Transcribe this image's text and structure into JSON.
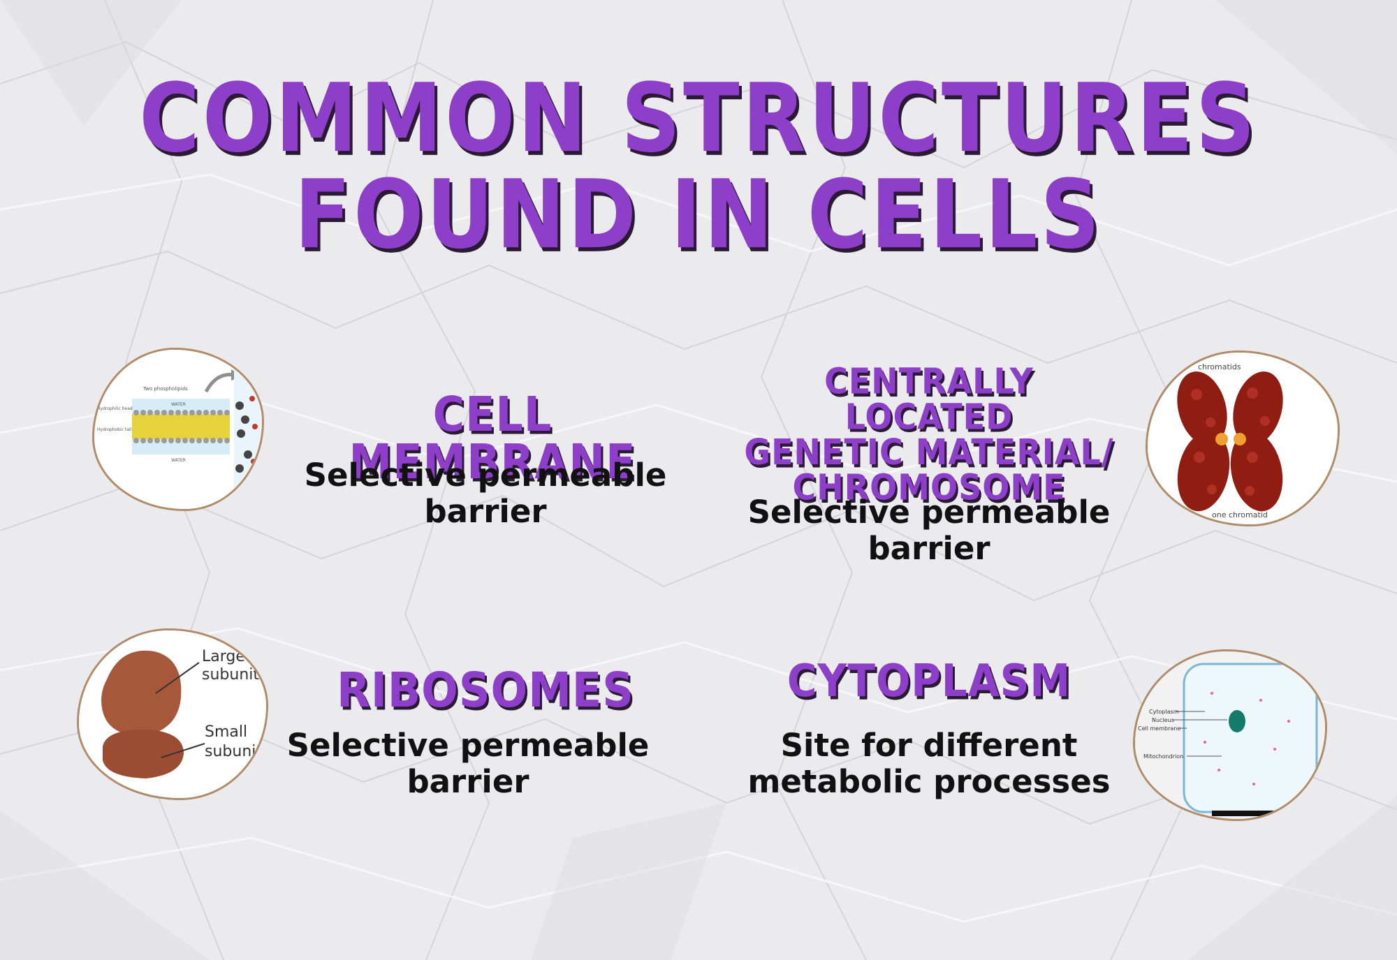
{
  "title": {
    "line1": "COMMON STRUCTURES",
    "line2": "FOUND IN CELLS"
  },
  "cards": {
    "membrane": {
      "heading": "CELL MEMBRANE",
      "desc_line1": "Selective permeable",
      "desc_line2": "barrier",
      "image_labels": {
        "two_phospholipids": "Two phospholipids",
        "water_top": "WATER",
        "water_bottom": "WATER",
        "hydrophilic": "Hydrophilic head",
        "hydrophobic": "Hydrophobic tail"
      }
    },
    "chromosome": {
      "heading_line1": "CENTRALLY LOCATED",
      "heading_line2": "GENETIC MATERIAL/",
      "heading_line3": "CHROMOSOME",
      "desc_line1": "Selective permeable",
      "desc_line2": "barrier",
      "image_labels": {
        "top": "chromatids",
        "bottom": "one chromatid"
      }
    },
    "ribosomes": {
      "heading": "RIBOSOMES",
      "desc_line1": "Selective permeable",
      "desc_line2": "barrier",
      "image_labels": {
        "large1": "Large",
        "large2": "subunit",
        "small1": "Small",
        "small2": "subunit"
      }
    },
    "cytoplasm": {
      "heading": "CYTOPLASM",
      "desc_line1": "Site for different",
      "desc_line2": "metabolic processes",
      "image_labels": {
        "cytoplasm": "Cytoplasm",
        "nucleus": "Nucleus",
        "membrane": "Cell membrane",
        "mito": "Mitochondrion"
      }
    }
  },
  "colors": {
    "title": "#8e3fc9",
    "shadow": "#2a1a33",
    "text": "#111111",
    "background": "#e9e9eb"
  }
}
